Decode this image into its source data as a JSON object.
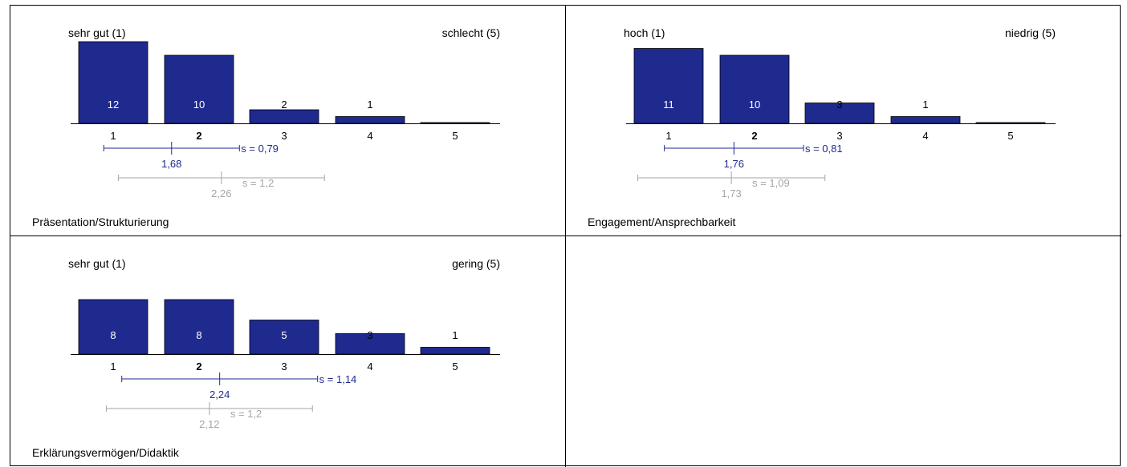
{
  "colors": {
    "bar": "#1f2a8f",
    "mean": "#1f2a8f",
    "comparison": "#a6a6a6",
    "axis": "#000000",
    "label_in_bar": "#ffffff",
    "label_above_bar": "#000000"
  },
  "chart_data": [
    {
      "type": "bar",
      "title": "Präsentation/Strukturierung",
      "scale_left": "sehr gut (1)",
      "scale_right": "schlecht (5)",
      "categories": [
        "1",
        "2",
        "3",
        "4",
        "5"
      ],
      "values": [
        12,
        10,
        2,
        1,
        0
      ],
      "value_labels": [
        "12",
        "10",
        "2",
        "1",
        ""
      ],
      "highlight_category": "2",
      "mean": {
        "value": 1.68,
        "label": "1,68",
        "sd": 0.79,
        "sd_label": "s = 0,79"
      },
      "comparison": {
        "value": 2.26,
        "label": "2,26",
        "sd": 1.2,
        "sd_label": "s = 1,2"
      }
    },
    {
      "type": "bar",
      "title": "Engagement/Ansprechbarkeit",
      "scale_left": "hoch (1)",
      "scale_right": "niedrig (5)",
      "categories": [
        "1",
        "2",
        "3",
        "4",
        "5"
      ],
      "values": [
        11,
        10,
        3,
        1,
        0
      ],
      "value_labels": [
        "11",
        "10",
        "3",
        "1",
        ""
      ],
      "highlight_category": "2",
      "mean": {
        "value": 1.76,
        "label": "1,76",
        "sd": 0.81,
        "sd_label": "s = 0,81"
      },
      "comparison": {
        "value": 1.73,
        "label": "1,73",
        "sd": 1.09,
        "sd_label": "s = 1,09"
      }
    },
    {
      "type": "bar",
      "title": "Erklärungsvermögen/Didaktik",
      "scale_left": "sehr gut (1)",
      "scale_right": "gering (5)",
      "categories": [
        "1",
        "2",
        "3",
        "4",
        "5"
      ],
      "values": [
        8,
        8,
        5,
        3,
        1
      ],
      "value_labels": [
        "8",
        "8",
        "5",
        "3",
        "1"
      ],
      "highlight_category": "2",
      "mean": {
        "value": 2.24,
        "label": "2,24",
        "sd": 1.14,
        "sd_label": "s = 1,14"
      },
      "comparison": {
        "value": 2.12,
        "label": "2,12",
        "sd": 1.2,
        "sd_label": "s = 1,2"
      }
    }
  ]
}
